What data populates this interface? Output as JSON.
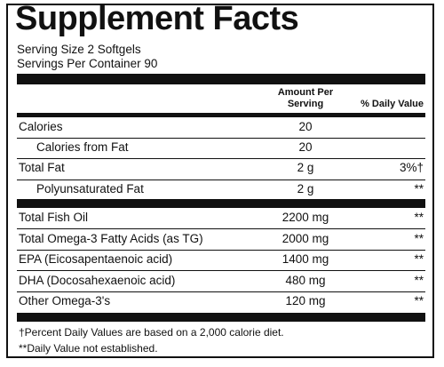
{
  "title": "Supplement Facts",
  "serving_size": "Serving Size 2 Softgels",
  "servings_per_container": "Servings Per Container 90",
  "headers": {
    "amount_line1": "Amount Per",
    "amount_line2": "Serving",
    "daily_value": "% Daily Value"
  },
  "rows": [
    {
      "name": "Calories",
      "amount": "20",
      "dv": ""
    },
    {
      "name": "Calories from Fat",
      "amount": "20",
      "dv": ""
    },
    {
      "name": "Total Fat",
      "amount": "2 g",
      "dv": "3%†"
    },
    {
      "name": "Polyunsaturated Fat",
      "amount": "2 g",
      "dv": "**"
    },
    {
      "name": "Total Fish Oil",
      "amount": "2200 mg",
      "dv": "**"
    },
    {
      "name": "Total Omega-3 Fatty Acids (as TG)",
      "amount": "2000 mg",
      "dv": "**"
    },
    {
      "name": "EPA (Eicosapentaenoic acid)",
      "amount": "1400 mg",
      "dv": "**"
    },
    {
      "name": "DHA (Docosahexaenoic acid)",
      "amount": "480 mg",
      "dv": "**"
    },
    {
      "name": "Other Omega-3's",
      "amount": "120 mg",
      "dv": "**"
    }
  ],
  "footnotes": {
    "daily_values": "†Percent Daily Values are based on a 2,000 calorie diet.",
    "not_established": "**Daily Value not established."
  }
}
